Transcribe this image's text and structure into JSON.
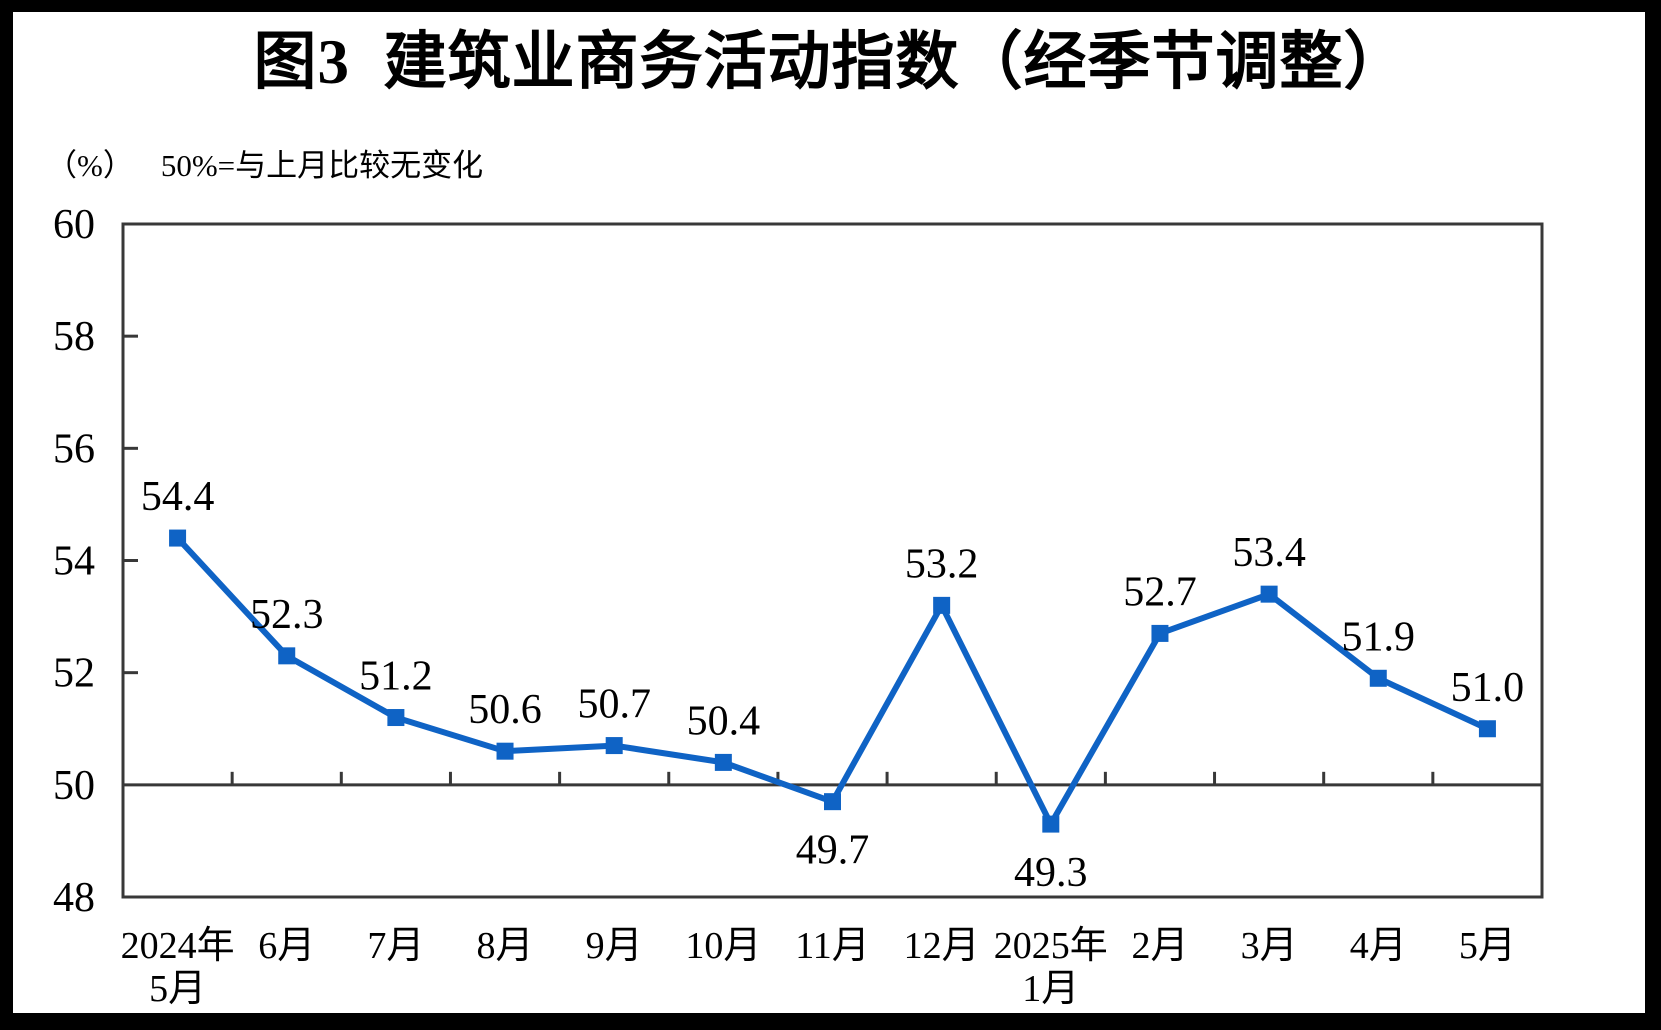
{
  "chart_data": {
    "type": "line",
    "title": "图3  建筑业商务活动指数（经季节调整）",
    "unit_label": "（%）",
    "note": "50%=与上月比较无变化",
    "categories": [
      "2024年\n5月",
      "6月",
      "7月",
      "8月",
      "9月",
      "10月",
      "11月",
      "12月",
      "2025年\n1月",
      "2月",
      "3月",
      "4月",
      "5月"
    ],
    "values": [
      54.4,
      52.3,
      51.2,
      50.6,
      50.7,
      50.4,
      49.7,
      53.2,
      49.3,
      52.7,
      53.4,
      51.9,
      51.0
    ],
    "label_positions": [
      "above",
      "above",
      "above",
      "above",
      "above",
      "above",
      "below",
      "above",
      "below",
      "above",
      "above",
      "above",
      "above"
    ],
    "ylim": [
      48,
      60
    ],
    "yticks": [
      48,
      50,
      52,
      54,
      56,
      58,
      60
    ],
    "baseline_value": 50,
    "grid": false,
    "legend": false,
    "colors": {
      "line": "#0F63C5",
      "marker": "#0F63C5",
      "axis": "#383838",
      "text": "#000000",
      "page_border": "#000000"
    }
  }
}
